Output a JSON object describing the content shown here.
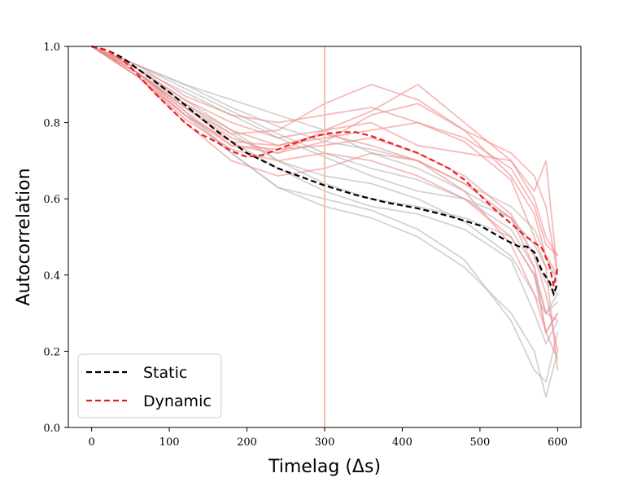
{
  "chart_data": {
    "type": "line",
    "title": "",
    "xlabel": "Timelag (Δs)",
    "ylabel": "Autocorrelation",
    "xlim": [
      -30,
      630
    ],
    "ylim": [
      0.0,
      1.0
    ],
    "xticks": [
      0,
      100,
      200,
      300,
      400,
      500,
      600
    ],
    "xtick_labels": [
      "0",
      "100",
      "200",
      "300",
      "400",
      "500",
      "600"
    ],
    "yticks": [
      0.0,
      0.2,
      0.4,
      0.6,
      0.8,
      1.0
    ],
    "ytick_labels": [
      "0.0",
      "0.2",
      "0.4",
      "0.6",
      "0.8",
      "1.0"
    ],
    "grid": false,
    "legend_position": "bottom-left",
    "vline": {
      "x": 300,
      "color": "#f4c2a8"
    },
    "series": [
      {
        "name": "Static",
        "style": "dashed",
        "color": "#000000",
        "x": [
          0,
          20,
          40,
          60,
          80,
          100,
          130,
          160,
          200,
          240,
          280,
          300,
          340,
          380,
          420,
          460,
          500,
          530,
          550,
          560,
          570,
          580,
          590,
          595,
          600
        ],
        "values": [
          1.0,
          0.99,
          0.97,
          0.94,
          0.91,
          0.88,
          0.83,
          0.78,
          0.72,
          0.68,
          0.65,
          0.635,
          0.61,
          0.59,
          0.575,
          0.555,
          0.53,
          0.495,
          0.475,
          0.475,
          0.46,
          0.41,
          0.38,
          0.35,
          0.38
        ]
      },
      {
        "name": "Dynamic",
        "style": "dashed",
        "color": "#e8201f",
        "x": [
          0,
          20,
          40,
          60,
          80,
          100,
          120,
          140,
          160,
          180,
          200,
          220,
          240,
          260,
          280,
          300,
          320,
          340,
          360,
          380,
          400,
          420,
          440,
          460,
          480,
          500,
          520,
          540,
          560,
          580,
          590,
          595,
          600
        ],
        "values": [
          1.0,
          0.99,
          0.965,
          0.925,
          0.88,
          0.84,
          0.8,
          0.77,
          0.75,
          0.725,
          0.71,
          0.715,
          0.73,
          0.745,
          0.76,
          0.77,
          0.775,
          0.775,
          0.765,
          0.75,
          0.735,
          0.72,
          0.7,
          0.68,
          0.65,
          0.61,
          0.57,
          0.535,
          0.5,
          0.47,
          0.42,
          0.37,
          0.42
        ]
      }
    ],
    "background_series_note": "individual traces",
    "background_series": [
      {
        "color": "#b5b5b5",
        "x": [
          0,
          60,
          120,
          180,
          240,
          300,
          360,
          420,
          480,
          540,
          570,
          585,
          600
        ],
        "values": [
          1.0,
          0.95,
          0.9,
          0.86,
          0.82,
          0.78,
          0.72,
          0.68,
          0.62,
          0.55,
          0.45,
          0.38,
          0.35
        ]
      },
      {
        "color": "#b5b5b5",
        "x": [
          0,
          60,
          120,
          180,
          240,
          300,
          360,
          420,
          480,
          540,
          570,
          585,
          600
        ],
        "values": [
          1.0,
          0.94,
          0.88,
          0.82,
          0.76,
          0.71,
          0.66,
          0.62,
          0.6,
          0.55,
          0.48,
          0.42,
          0.4
        ]
      },
      {
        "color": "#b5b5b5",
        "x": [
          0,
          60,
          120,
          180,
          240,
          300,
          360,
          420,
          480,
          540,
          570,
          585,
          600
        ],
        "values": [
          1.0,
          0.93,
          0.85,
          0.77,
          0.7,
          0.64,
          0.6,
          0.58,
          0.55,
          0.5,
          0.4,
          0.25,
          0.3
        ]
      },
      {
        "color": "#b5b5b5",
        "x": [
          0,
          60,
          120,
          180,
          240,
          300,
          360,
          420,
          480,
          540,
          570,
          585,
          600
        ],
        "values": [
          1.0,
          0.92,
          0.82,
          0.72,
          0.63,
          0.58,
          0.55,
          0.5,
          0.42,
          0.3,
          0.2,
          0.08,
          0.2
        ]
      },
      {
        "color": "#b5b5b5",
        "x": [
          0,
          60,
          120,
          180,
          240,
          300,
          360,
          420,
          480,
          540,
          570,
          585,
          600
        ],
        "values": [
          1.0,
          0.93,
          0.83,
          0.72,
          0.63,
          0.6,
          0.57,
          0.52,
          0.44,
          0.28,
          0.15,
          0.12,
          0.25
        ]
      },
      {
        "color": "#b5b5b5",
        "x": [
          0,
          60,
          120,
          180,
          240,
          300,
          360,
          420,
          480,
          540,
          570,
          585,
          600
        ],
        "values": [
          1.0,
          0.95,
          0.89,
          0.83,
          0.77,
          0.72,
          0.68,
          0.65,
          0.6,
          0.52,
          0.42,
          0.3,
          0.33
        ]
      },
      {
        "color": "#b5b5b5",
        "x": [
          0,
          60,
          120,
          180,
          240,
          300,
          360,
          420,
          480,
          540,
          570,
          585,
          600
        ],
        "values": [
          1.0,
          0.95,
          0.9,
          0.84,
          0.79,
          0.75,
          0.73,
          0.7,
          0.64,
          0.58,
          0.52,
          0.45,
          0.38
        ]
      },
      {
        "color": "#b5b5b5",
        "x": [
          0,
          60,
          120,
          180,
          240,
          300,
          360,
          420,
          480,
          540,
          570,
          585,
          600
        ],
        "values": [
          1.0,
          0.94,
          0.86,
          0.78,
          0.7,
          0.66,
          0.64,
          0.6,
          0.54,
          0.45,
          0.35,
          0.3,
          0.35
        ]
      },
      {
        "color": "#b5b5b5",
        "x": [
          0,
          60,
          120,
          180,
          240,
          300,
          360,
          420,
          480,
          540,
          570,
          585,
          600
        ],
        "values": [
          1.0,
          0.93,
          0.84,
          0.75,
          0.68,
          0.62,
          0.58,
          0.56,
          0.52,
          0.44,
          0.3,
          0.22,
          0.28
        ]
      },
      {
        "color": "#f28b8b",
        "x": [
          0,
          60,
          120,
          180,
          240,
          300,
          360,
          420,
          480,
          540,
          570,
          585,
          600
        ],
        "values": [
          1.0,
          0.93,
          0.84,
          0.77,
          0.78,
          0.85,
          0.9,
          0.86,
          0.78,
          0.66,
          0.56,
          0.45,
          0.4
        ]
      },
      {
        "color": "#f28b8b",
        "x": [
          0,
          60,
          120,
          180,
          240,
          300,
          360,
          420,
          480,
          540,
          570,
          585,
          600
        ],
        "values": [
          1.0,
          0.94,
          0.86,
          0.8,
          0.76,
          0.78,
          0.83,
          0.9,
          0.8,
          0.7,
          0.6,
          0.5,
          0.45
        ]
      },
      {
        "color": "#f28b8b",
        "x": [
          0,
          60,
          120,
          180,
          240,
          300,
          360,
          420,
          480,
          540,
          570,
          585,
          600
        ],
        "values": [
          1.0,
          0.92,
          0.81,
          0.73,
          0.7,
          0.72,
          0.7,
          0.66,
          0.6,
          0.5,
          0.4,
          0.3,
          0.28
        ]
      },
      {
        "color": "#f28b8b",
        "x": [
          0,
          60,
          120,
          180,
          240,
          300,
          360,
          420,
          480,
          540,
          570,
          585,
          600
        ],
        "values": [
          1.0,
          0.93,
          0.83,
          0.74,
          0.72,
          0.78,
          0.8,
          0.74,
          0.72,
          0.7,
          0.62,
          0.7,
          0.4
        ]
      },
      {
        "color": "#f28b8b",
        "x": [
          0,
          60,
          120,
          180,
          240,
          300,
          360,
          420,
          480,
          540,
          570,
          585,
          600
        ],
        "values": [
          1.0,
          0.92,
          0.8,
          0.7,
          0.66,
          0.68,
          0.72,
          0.7,
          0.64,
          0.55,
          0.42,
          0.25,
          0.3
        ]
      },
      {
        "color": "#f28b8b",
        "x": [
          0,
          60,
          120,
          180,
          240,
          300,
          360,
          420,
          480,
          540,
          570,
          585,
          600
        ],
        "values": [
          1.0,
          0.94,
          0.85,
          0.78,
          0.74,
          0.76,
          0.78,
          0.8,
          0.76,
          0.68,
          0.58,
          0.48,
          0.45
        ]
      },
      {
        "color": "#f28b8b",
        "x": [
          0,
          60,
          120,
          180,
          240,
          300,
          360,
          420,
          480,
          540,
          570,
          585,
          600
        ],
        "values": [
          1.0,
          0.93,
          0.82,
          0.74,
          0.73,
          0.74,
          0.76,
          0.72,
          0.66,
          0.56,
          0.45,
          0.35,
          0.2
        ]
      },
      {
        "color": "#f28b8b",
        "x": [
          0,
          60,
          120,
          180,
          240,
          300,
          360,
          420,
          480,
          540,
          570,
          585,
          600
        ],
        "values": [
          1.0,
          0.95,
          0.87,
          0.82,
          0.8,
          0.82,
          0.84,
          0.8,
          0.75,
          0.65,
          0.5,
          0.42,
          0.15
        ]
      },
      {
        "color": "#f28b8b",
        "x": [
          0,
          60,
          120,
          180,
          240,
          300,
          360,
          420,
          480,
          540,
          570,
          585,
          600
        ],
        "values": [
          1.0,
          0.93,
          0.84,
          0.76,
          0.72,
          0.75,
          0.82,
          0.85,
          0.78,
          0.72,
          0.66,
          0.58,
          0.4
        ]
      },
      {
        "color": "#f28b8b",
        "x": [
          0,
          60,
          120,
          180,
          240,
          300,
          360,
          420,
          480,
          540,
          570,
          585,
          600
        ],
        "values": [
          1.0,
          0.92,
          0.82,
          0.75,
          0.74,
          0.77,
          0.74,
          0.7,
          0.62,
          0.48,
          0.35,
          0.25,
          0.18
        ]
      }
    ]
  }
}
